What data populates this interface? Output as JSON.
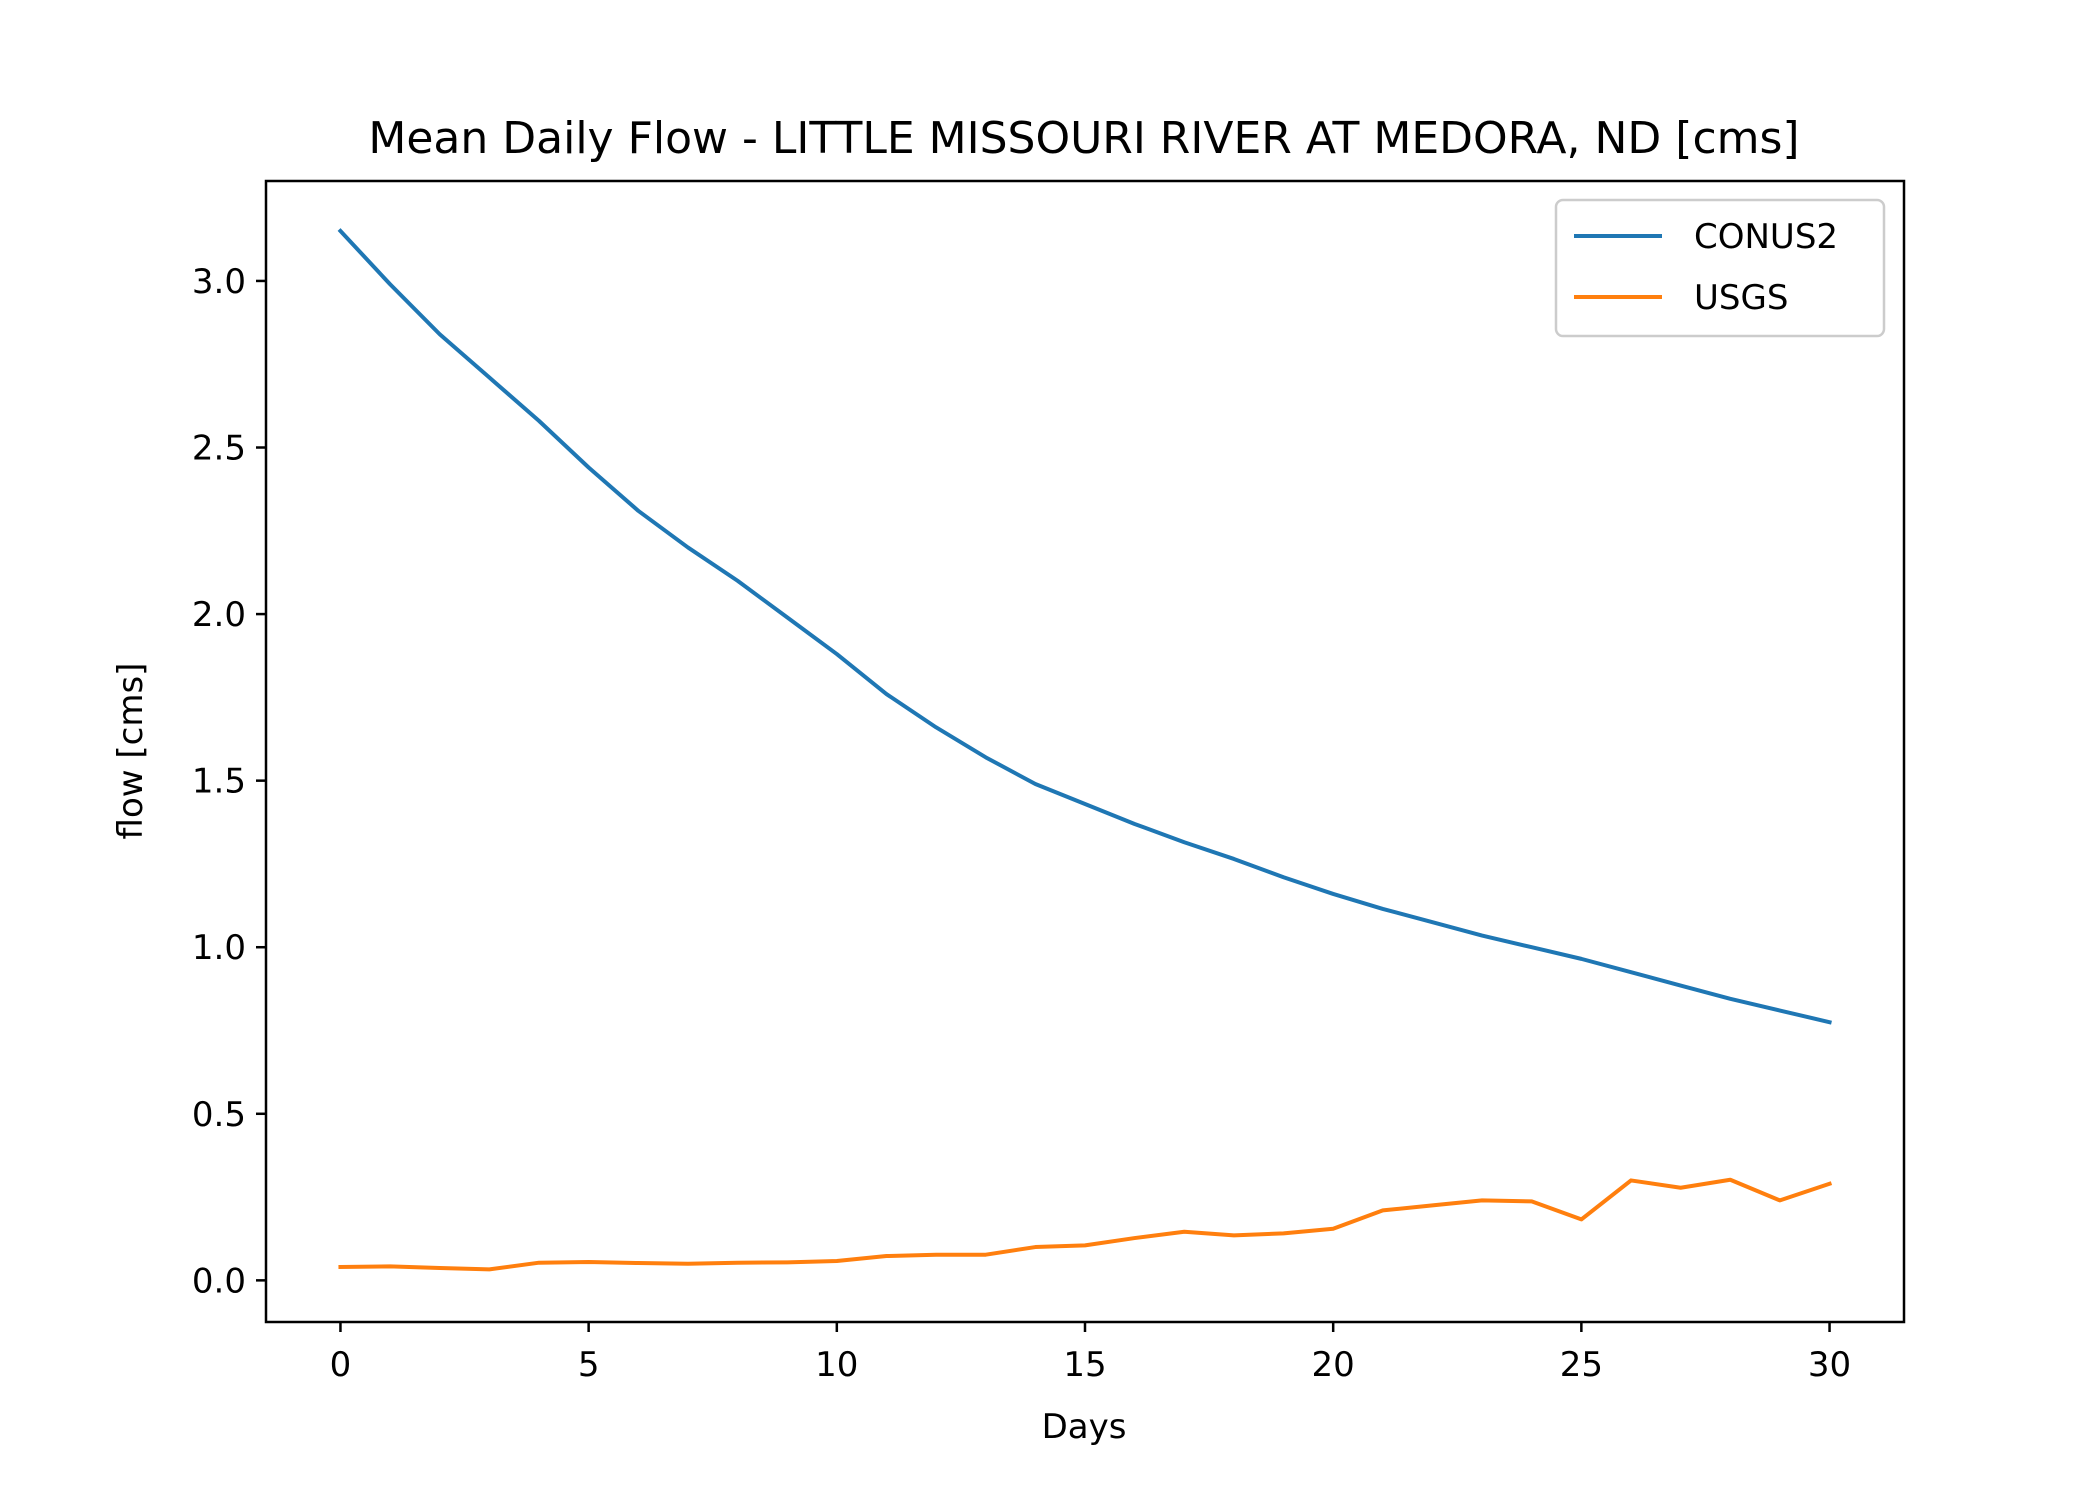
{
  "chart_data": {
    "type": "line",
    "title": "Mean Daily Flow - LITTLE MISSOURI RIVER AT MEDORA, ND [cms]",
    "xlabel": "Days",
    "ylabel": "flow [cms]",
    "xlim": [
      -1.5,
      31.5
    ],
    "ylim": [
      -0.125,
      3.3
    ],
    "xticks": [
      0,
      5,
      10,
      15,
      20,
      25,
      30
    ],
    "xtick_labels": [
      "0",
      "5",
      "10",
      "15",
      "20",
      "25",
      "30"
    ],
    "yticks": [
      0.0,
      0.5,
      1.0,
      1.5,
      2.0,
      2.5,
      3.0
    ],
    "ytick_labels": [
      "0.0",
      "0.5",
      "1.0",
      "1.5",
      "2.0",
      "2.5",
      "3.0"
    ],
    "grid": false,
    "legend_position": "top-right",
    "x": [
      0,
      1,
      2,
      3,
      4,
      5,
      6,
      7,
      8,
      9,
      10,
      11,
      12,
      13,
      14,
      15,
      16,
      17,
      18,
      19,
      20,
      21,
      22,
      23,
      24,
      25,
      26,
      27,
      28,
      29,
      30
    ],
    "series": [
      {
        "name": "CONUS2",
        "color": "#1f77b4",
        "values": [
          3.15,
          2.99,
          2.84,
          2.71,
          2.58,
          2.44,
          2.31,
          2.2,
          2.1,
          1.99,
          1.88,
          1.76,
          1.66,
          1.57,
          1.49,
          1.43,
          1.37,
          1.315,
          1.265,
          1.21,
          1.16,
          1.115,
          1.075,
          1.035,
          1.0,
          0.965,
          0.925,
          0.885,
          0.845,
          0.81,
          0.775
        ]
      },
      {
        "name": "USGS",
        "color": "#ff7f0e",
        "values": [
          0.04,
          0.042,
          0.037,
          0.033,
          0.053,
          0.055,
          0.052,
          0.05,
          0.053,
          0.054,
          0.058,
          0.073,
          0.077,
          0.077,
          0.1,
          0.105,
          0.127,
          0.146,
          0.135,
          0.141,
          0.155,
          0.21,
          0.225,
          0.24,
          0.237,
          0.183,
          0.3,
          0.278,
          0.302,
          0.24,
          0.29
        ]
      }
    ]
  }
}
